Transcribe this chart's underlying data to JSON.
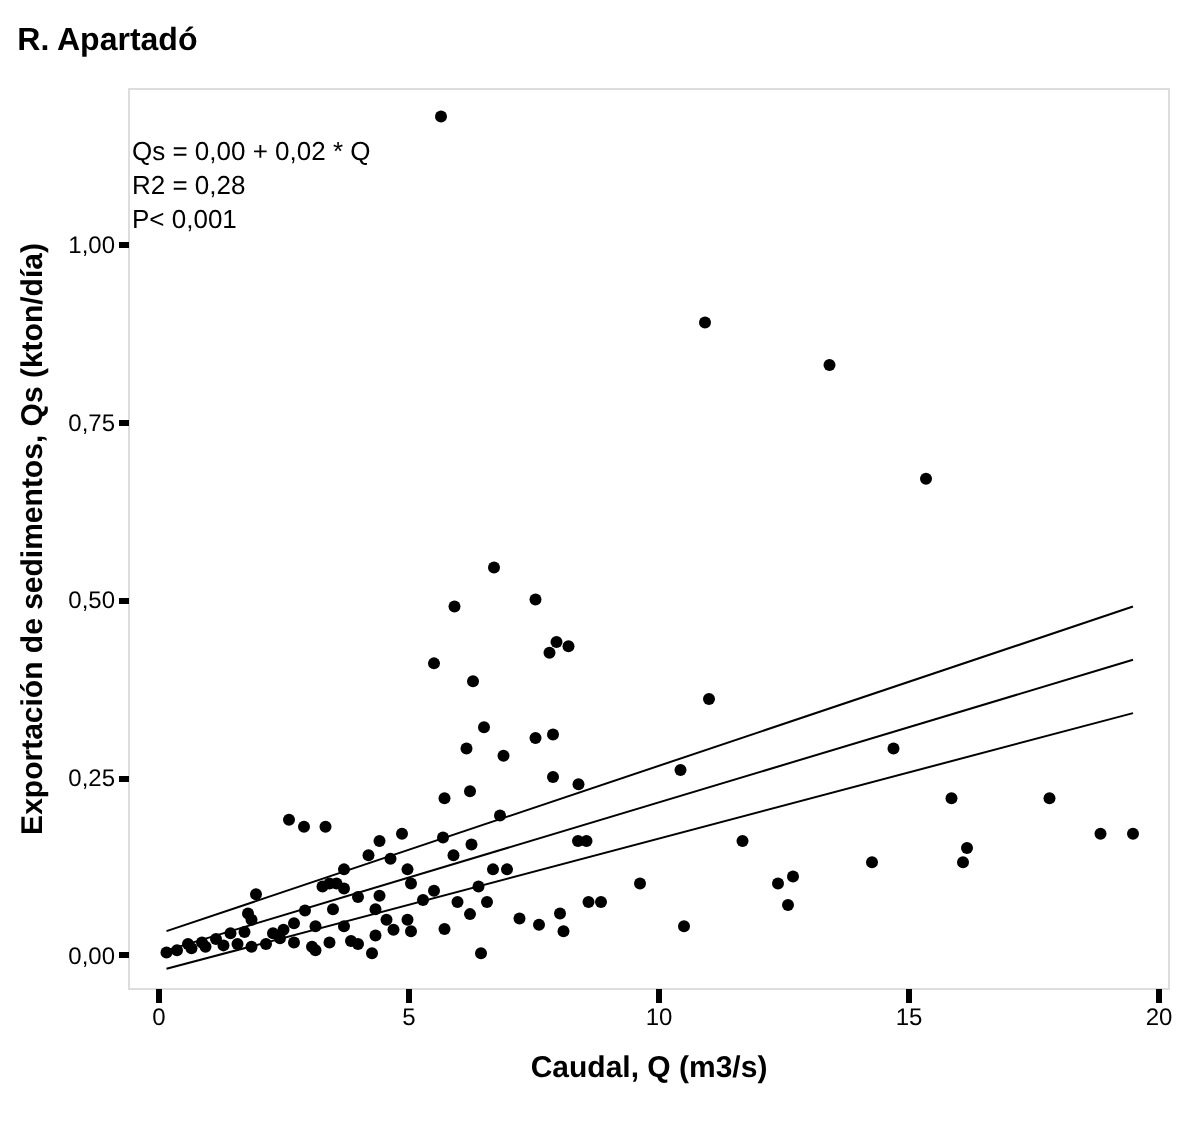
{
  "chart_data": {
    "type": "scatter",
    "title": "R. Apartadó",
    "xlabel": "Caudal, Q (m3/s)",
    "ylabel": "Exportación de sedimentos, Qs (kton/día)",
    "xlim": [
      -0.6,
      20.2
    ],
    "ylim": [
      -0.047,
      1.22
    ],
    "xticks": [
      0,
      5,
      10,
      15,
      20
    ],
    "yticks": [
      {
        "value": 0,
        "label": "0,00"
      },
      {
        "value": 0.25,
        "label": "0,25"
      },
      {
        "value": 0.5,
        "label": "0,50"
      },
      {
        "value": 0.75,
        "label": "0,75"
      },
      {
        "value": 1,
        "label": "1,00"
      }
    ],
    "grid": false,
    "annotations": [
      "Qs = 0,00 + 0,02 * Q",
      "R2 = 0,28",
      "P< 0,001"
    ],
    "series": [
      {
        "type": "scatter",
        "marker": "circle",
        "color": "#000000",
        "x": [
          5.66,
          10.94,
          13.43,
          15.36,
          11.02,
          10.45,
          14.71,
          15.87,
          17.83,
          11.69,
          18.85,
          19.5,
          16.18,
          16.1,
          14.28,
          9.64,
          12.4,
          12.7,
          12.6,
          10.52,
          6.72,
          5.93,
          7.55,
          7.97,
          7.83,
          8.21,
          5.52,
          6.3,
          6.52,
          6.17,
          6.91,
          7.55,
          7.9,
          7.9,
          8.41,
          5.73,
          6.24,
          6.84,
          2.62,
          2.92,
          3.35,
          4.88,
          4.43,
          5.7,
          4.21,
          4.65,
          5.91,
          6.27,
          8.4,
          8.57,
          3.72,
          4.99,
          6.7,
          6.98,
          3.43,
          5.06,
          5.52,
          1.96,
          6.41,
          5.3,
          5.99,
          6.58,
          8.61,
          8.86,
          6.24,
          7.23,
          8.04,
          7.62,
          8.11,
          5.73,
          6.46,
          4.28,
          0.17,
          0.38,
          0.67,
          0.95,
          1.31,
          1.59,
          1.87,
          2.16,
          2.44,
          2.72,
          3.08,
          3.43,
          3.86,
          4.35,
          4.71,
          5.06,
          4.99,
          4.57,
          4.35,
          4.0,
          3.72,
          3.5,
          3.15,
          2.94,
          2.72,
          2.51,
          2.3,
          1.87,
          1.73,
          1.45,
          1.16,
          0.88,
          0.6,
          3.15,
          4.0,
          3.72,
          3.29,
          3.57,
          4.43,
          1.8
        ],
        "values": [
          1.18,
          0.89,
          0.83,
          0.67,
          0.36,
          0.26,
          0.29,
          0.22,
          0.22,
          0.16,
          0.17,
          0.17,
          0.15,
          0.13,
          0.13,
          0.1,
          0.1,
          0.11,
          0.07,
          0.04,
          0.545,
          0.49,
          0.5,
          0.44,
          0.425,
          0.434,
          0.41,
          0.385,
          0.32,
          0.29,
          0.28,
          0.305,
          0.31,
          0.25,
          0.24,
          0.22,
          0.23,
          0.196,
          0.19,
          0.18,
          0.18,
          0.17,
          0.16,
          0.165,
          0.14,
          0.135,
          0.14,
          0.155,
          0.16,
          0.16,
          0.12,
          0.12,
          0.12,
          0.12,
          0.1,
          0.1,
          0.09,
          0.085,
          0.096,
          0.077,
          0.074,
          0.074,
          0.074,
          0.074,
          0.057,
          0.051,
          0.058,
          0.042,
          0.033,
          0.036,
          0.002,
          0.002,
          0.003,
          0.006,
          0.009,
          0.011,
          0.013,
          0.015,
          0.011,
          0.015,
          0.023,
          0.017,
          0.011,
          0.017,
          0.019,
          0.027,
          0.035,
          0.033,
          0.049,
          0.049,
          0.064,
          0.081,
          0.093,
          0.064,
          0.04,
          0.062,
          0.044,
          0.035,
          0.03,
          0.049,
          0.032,
          0.03,
          0.022,
          0.017,
          0.015,
          0.006,
          0.015,
          0.04,
          0.096,
          0.1,
          0.083,
          0.058
        ]
      },
      {
        "type": "line",
        "marker": "none",
        "line_style": "solid",
        "color": "#000000",
        "x": [
          0.17,
          19.5
        ],
        "values": [
          0.033,
          0.49
        ]
      },
      {
        "type": "line",
        "marker": "none",
        "line_style": "solid",
        "color": "#000000",
        "x": [
          0.17,
          19.5
        ],
        "values": [
          0.006,
          0.415
        ]
      },
      {
        "type": "line",
        "marker": "none",
        "line_style": "solid",
        "color": "#000000",
        "x": [
          0.17,
          19.5
        ],
        "values": [
          -0.02,
          0.34
        ]
      }
    ]
  }
}
